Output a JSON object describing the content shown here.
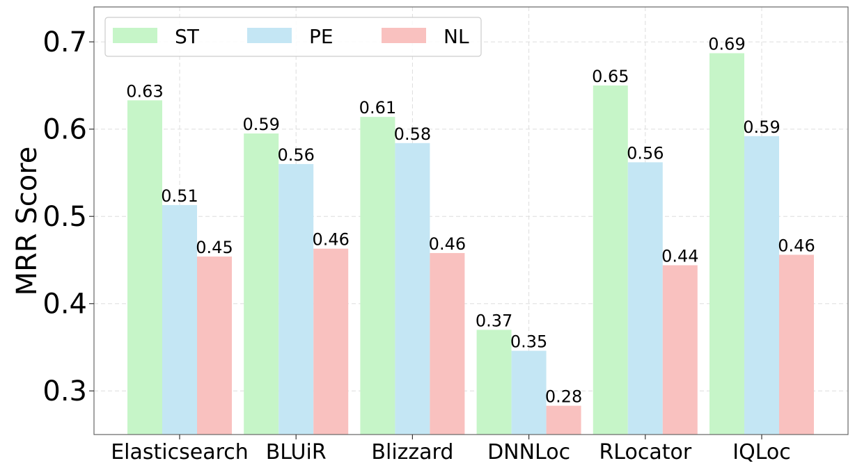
{
  "chart_data": {
    "type": "bar",
    "title": "",
    "xlabel": "",
    "ylabel": "MRR Score",
    "ylim": [
      0.25,
      0.74
    ],
    "yticks": [
      0.3,
      0.4,
      0.5,
      0.6,
      0.7
    ],
    "ytick_labels": [
      "0.3",
      "0.4",
      "0.5",
      "0.6",
      "0.7"
    ],
    "categories": [
      "Elasticsearch",
      "BLUiR",
      "Blizzard",
      "DNNLoc",
      "RLocator",
      "IQLoc"
    ],
    "series": [
      {
        "name": "ST",
        "color": "#c6f5c8",
        "values": [
          0.633,
          0.595,
          0.614,
          0.37,
          0.65,
          0.687
        ],
        "labels": [
          "0.63",
          "0.59",
          "0.61",
          "0.37",
          "0.65",
          "0.69"
        ]
      },
      {
        "name": "PE",
        "color": "#c4e6f4",
        "values": [
          0.513,
          0.56,
          0.584,
          0.346,
          0.562,
          0.592
        ],
        "labels": [
          "0.51",
          "0.56",
          "0.58",
          "0.35",
          "0.56",
          "0.59"
        ]
      },
      {
        "name": "NL",
        "color": "#f9c1bf",
        "values": [
          0.454,
          0.463,
          0.458,
          0.283,
          0.444,
          0.456
        ],
        "labels": [
          "0.45",
          "0.46",
          "0.46",
          "0.28",
          "0.44",
          "0.46"
        ]
      }
    ],
    "grid": true,
    "legend_position": "top-left"
  }
}
